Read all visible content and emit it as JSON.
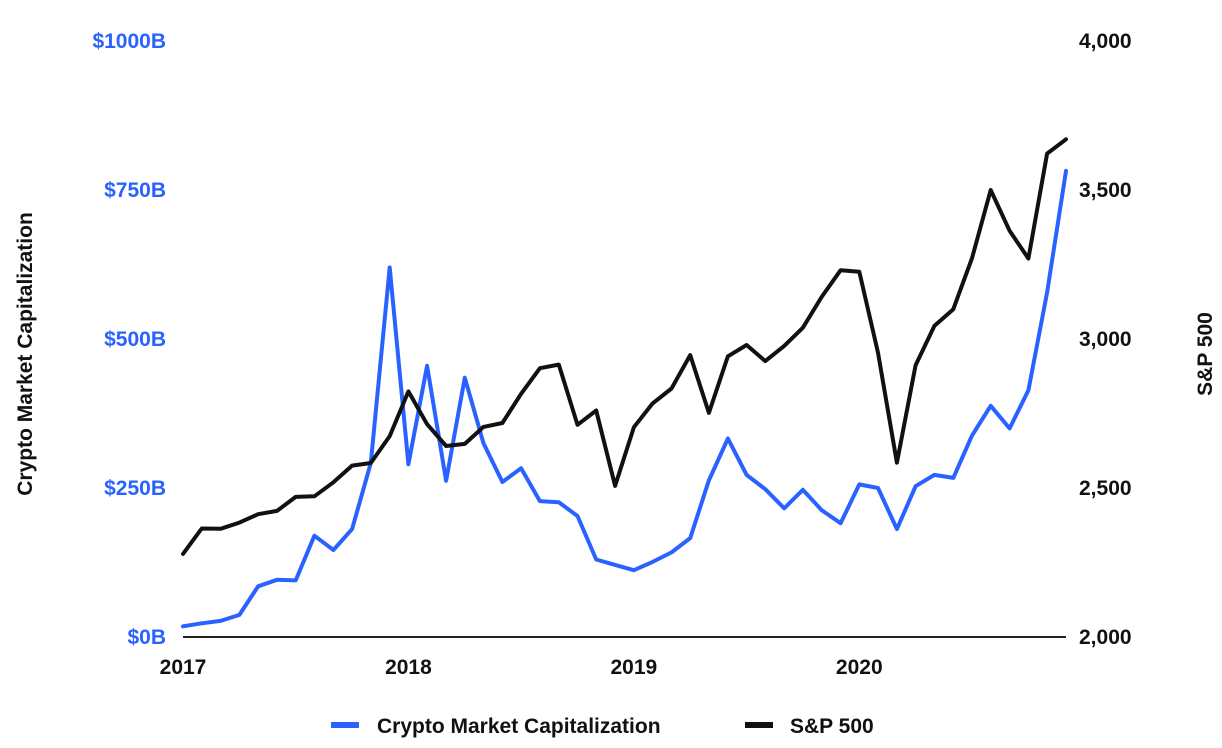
{
  "chart_data": {
    "type": "line",
    "title": "",
    "x_ticks": [
      "2017",
      "2018",
      "2019",
      "2020"
    ],
    "x_range": [
      2017.0,
      2020.917
    ],
    "left_axis": {
      "label": "Crypto Market Capitalization",
      "ticks": [
        "$0B",
        "$250B",
        "$500B",
        "$750B",
        "$1000B"
      ],
      "range": [
        0,
        1000
      ],
      "unit": "billion USD",
      "color": "#2962ff"
    },
    "right_axis": {
      "label": "S&P 500",
      "ticks": [
        "2,000",
        "2,500",
        "3,000",
        "3,500",
        "4,000"
      ],
      "range": [
        2000,
        4000
      ],
      "color": "#111111"
    },
    "grid": false,
    "legend": {
      "position": "bottom",
      "entries": [
        "Crypto Market Capitalization",
        "S&P 500"
      ]
    },
    "series": [
      {
        "name": "Crypto Market Capitalization",
        "axis": "left",
        "color": "#2962ff",
        "x": [
          2017.0,
          2017.083,
          2017.167,
          2017.25,
          2017.333,
          2017.417,
          2017.5,
          2017.583,
          2017.667,
          2017.75,
          2017.833,
          2017.917,
          2018.0,
          2018.083,
          2018.167,
          2018.25,
          2018.333,
          2018.417,
          2018.5,
          2018.583,
          2018.667,
          2018.75,
          2018.833,
          2018.917,
          2019.0,
          2019.083,
          2019.167,
          2019.25,
          2019.333,
          2019.417,
          2019.5,
          2019.583,
          2019.667,
          2019.75,
          2019.833,
          2019.917,
          2020.0,
          2020.083,
          2020.167,
          2020.25,
          2020.333,
          2020.417,
          2020.5,
          2020.583,
          2020.667,
          2020.75,
          2020.833,
          2020.917
        ],
        "values": [
          18,
          23,
          27,
          37,
          85,
          96,
          95,
          170,
          146,
          181,
          292,
          620,
          290,
          455,
          262,
          435,
          325,
          260,
          283,
          228,
          226,
          203,
          130,
          121,
          112,
          126,
          142,
          166,
          263,
          333,
          272,
          248,
          216,
          247,
          213,
          191,
          256,
          250,
          181,
          253,
          272,
          267,
          338,
          388,
          350,
          414,
          578,
          782
        ]
      },
      {
        "name": "S&P 500",
        "axis": "right",
        "color": "#111111",
        "x": [
          2017.0,
          2017.083,
          2017.167,
          2017.25,
          2017.333,
          2017.417,
          2017.5,
          2017.583,
          2017.667,
          2017.75,
          2017.833,
          2017.917,
          2018.0,
          2018.083,
          2018.167,
          2018.25,
          2018.333,
          2018.417,
          2018.5,
          2018.583,
          2018.667,
          2018.75,
          2018.833,
          2018.917,
          2019.0,
          2019.083,
          2019.167,
          2019.25,
          2019.333,
          2019.417,
          2019.5,
          2019.583,
          2019.667,
          2019.75,
          2019.833,
          2019.917,
          2020.0,
          2020.083,
          2020.167,
          2020.25,
          2020.333,
          2020.417,
          2020.5,
          2020.583,
          2020.667,
          2020.75,
          2020.833,
          2020.917
        ],
        "values": [
          2279,
          2364,
          2363,
          2384,
          2412,
          2423,
          2470,
          2472,
          2519,
          2575,
          2584,
          2674,
          2824,
          2714,
          2641,
          2648,
          2705,
          2718,
          2816,
          2902,
          2914,
          2712,
          2760,
          2507,
          2704,
          2784,
          2834,
          2946,
          2752,
          2942,
          2980,
          2926,
          2977,
          3038,
          3141,
          3231,
          3226,
          2954,
          2585,
          2912,
          3044,
          3100,
          3271,
          3500,
          3363,
          3270,
          3622,
          3670
        ]
      }
    ]
  }
}
